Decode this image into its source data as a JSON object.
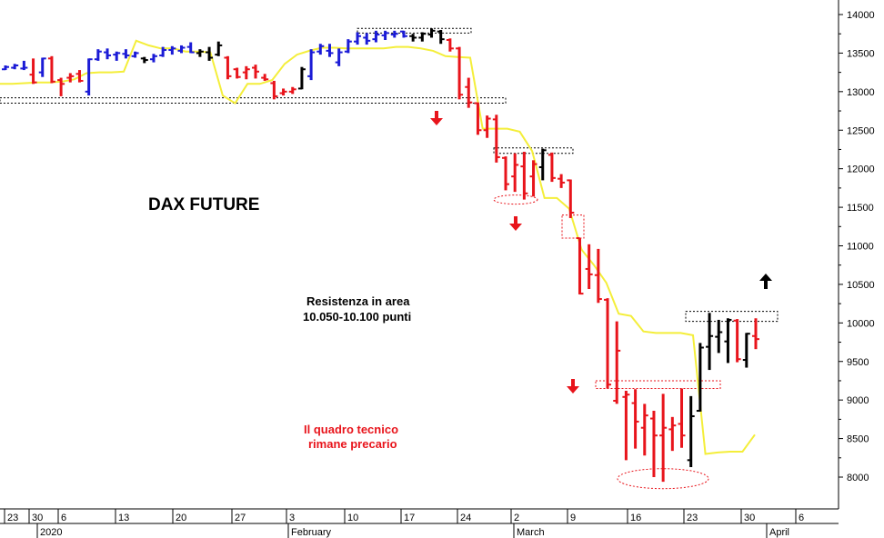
{
  "chart_data": {
    "type": "ohlc-bar",
    "title": "DAX FUTURE",
    "annotations": [
      {
        "lines": [
          "Resistenza in area",
          "10.050-10.100 punti"
        ],
        "color": "#000000"
      },
      {
        "lines": [
          "Il quadro tecnico",
          "rimane precario"
        ],
        "color": "#e8141b"
      }
    ],
    "y_ticks": [
      "14000",
      "13500",
      "13000",
      "12500",
      "12000",
      "11500",
      "11000",
      "10500",
      "10000",
      "9500",
      "9000",
      "8500",
      "8000"
    ],
    "y_tick_values": [
      14000,
      13500,
      13000,
      12500,
      12000,
      11500,
      11000,
      10500,
      10000,
      9500,
      9000,
      8500,
      8000
    ],
    "ylim": [
      7750,
      14150
    ],
    "x_day_ticks": [
      "23",
      "30",
      "6",
      "13",
      "20",
      "27",
      "3",
      "10",
      "17",
      "24",
      "2",
      "9",
      "16",
      "23",
      "30",
      "6"
    ],
    "x_month_labels": [
      "2020",
      "February",
      "March",
      "April"
    ],
    "colors": {
      "up_trend": "#1b1bd6",
      "down_trend": "#e8141b",
      "neutral": "#000000",
      "stop_line": "#f4ee3a"
    },
    "bars": [
      {
        "o": 13290,
        "h": 13340,
        "l": 13280,
        "c": 13320,
        "color": "blue"
      },
      {
        "o": 13310,
        "h": 13360,
        "l": 13290,
        "c": 13340,
        "color": "blue"
      },
      {
        "o": 13300,
        "h": 13400,
        "l": 13280,
        "c": 13310,
        "color": "blue"
      },
      {
        "o": 13220,
        "h": 13430,
        "l": 13100,
        "c": 13120,
        "color": "red"
      },
      {
        "o": 13250,
        "h": 13440,
        "l": 13190,
        "c": 13430,
        "color": "blue"
      },
      {
        "o": 13430,
        "h": 13460,
        "l": 13110,
        "c": 13130,
        "color": "red"
      },
      {
        "o": 13150,
        "h": 13180,
        "l": 12940,
        "c": 13100,
        "color": "red"
      },
      {
        "o": 13180,
        "h": 13240,
        "l": 13120,
        "c": 13200,
        "color": "red"
      },
      {
        "o": 13230,
        "h": 13280,
        "l": 13120,
        "c": 13140,
        "color": "red"
      },
      {
        "o": 13000,
        "h": 13430,
        "l": 12950,
        "c": 13420,
        "color": "blue"
      },
      {
        "o": 13420,
        "h": 13550,
        "l": 13400,
        "c": 13520,
        "color": "blue"
      },
      {
        "o": 13510,
        "h": 13560,
        "l": 13420,
        "c": 13470,
        "color": "blue"
      },
      {
        "o": 13480,
        "h": 13520,
        "l": 13400,
        "c": 13500,
        "color": "blue"
      },
      {
        "o": 13490,
        "h": 13550,
        "l": 13430,
        "c": 13470,
        "color": "blue"
      },
      {
        "o": 13460,
        "h": 13520,
        "l": 13440,
        "c": 13500,
        "color": "blue"
      },
      {
        "o": 13430,
        "h": 13450,
        "l": 13370,
        "c": 13410,
        "color": "neutral"
      },
      {
        "o": 13420,
        "h": 13490,
        "l": 13380,
        "c": 13460,
        "color": "blue"
      },
      {
        "o": 13470,
        "h": 13580,
        "l": 13450,
        "c": 13540,
        "color": "blue"
      },
      {
        "o": 13540,
        "h": 13590,
        "l": 13480,
        "c": 13560,
        "color": "blue"
      },
      {
        "o": 13530,
        "h": 13600,
        "l": 13500,
        "c": 13570,
        "color": "blue"
      },
      {
        "o": 13580,
        "h": 13640,
        "l": 13500,
        "c": 13510,
        "color": "blue"
      },
      {
        "o": 13500,
        "h": 13550,
        "l": 13450,
        "c": 13520,
        "color": "neutral"
      },
      {
        "o": 13510,
        "h": 13580,
        "l": 13400,
        "c": 13440,
        "color": "neutral"
      },
      {
        "o": 13480,
        "h": 13650,
        "l": 13460,
        "c": 13600,
        "color": "neutral"
      },
      {
        "o": 13440,
        "h": 13460,
        "l": 13160,
        "c": 13200,
        "color": "red"
      },
      {
        "o": 13290,
        "h": 13310,
        "l": 13170,
        "c": 13190,
        "color": "red"
      },
      {
        "o": 13250,
        "h": 13330,
        "l": 13160,
        "c": 13290,
        "color": "red"
      },
      {
        "o": 13310,
        "h": 13350,
        "l": 13170,
        "c": 13260,
        "color": "red"
      },
      {
        "o": 13180,
        "h": 13230,
        "l": 13140,
        "c": 13160,
        "color": "red"
      },
      {
        "o": 13110,
        "h": 13140,
        "l": 12900,
        "c": 12940,
        "color": "red"
      },
      {
        "o": 12980,
        "h": 13040,
        "l": 12950,
        "c": 13000,
        "color": "red"
      },
      {
        "o": 13000,
        "h": 13060,
        "l": 12970,
        "c": 13030,
        "color": "red"
      },
      {
        "o": 13040,
        "h": 13320,
        "l": 13030,
        "c": 13290,
        "color": "neutral"
      },
      {
        "o": 13200,
        "h": 13550,
        "l": 13150,
        "c": 13510,
        "color": "blue"
      },
      {
        "o": 13520,
        "h": 13620,
        "l": 13480,
        "c": 13590,
        "color": "blue"
      },
      {
        "o": 13530,
        "h": 13620,
        "l": 13450,
        "c": 13500,
        "color": "blue"
      },
      {
        "o": 13380,
        "h": 13560,
        "l": 13330,
        "c": 13510,
        "color": "blue"
      },
      {
        "o": 13520,
        "h": 13680,
        "l": 13500,
        "c": 13650,
        "color": "blue"
      },
      {
        "o": 13650,
        "h": 13770,
        "l": 13610,
        "c": 13720,
        "color": "blue"
      },
      {
        "o": 13700,
        "h": 13760,
        "l": 13610,
        "c": 13660,
        "color": "blue"
      },
      {
        "o": 13680,
        "h": 13790,
        "l": 13640,
        "c": 13740,
        "color": "blue"
      },
      {
        "o": 13730,
        "h": 13790,
        "l": 13670,
        "c": 13760,
        "color": "blue"
      },
      {
        "o": 13740,
        "h": 13790,
        "l": 13700,
        "c": 13750,
        "color": "blue"
      },
      {
        "o": 13780,
        "h": 13790,
        "l": 13700,
        "c": 13720,
        "color": "blue"
      },
      {
        "o": 13720,
        "h": 13750,
        "l": 13650,
        "c": 13700,
        "color": "neutral"
      },
      {
        "o": 13700,
        "h": 13770,
        "l": 13650,
        "c": 13750,
        "color": "neutral"
      },
      {
        "o": 13740,
        "h": 13820,
        "l": 13700,
        "c": 13790,
        "color": "neutral"
      },
      {
        "o": 13780,
        "h": 13800,
        "l": 13620,
        "c": 13680,
        "color": "neutral"
      },
      {
        "o": 13670,
        "h": 13690,
        "l": 13520,
        "c": 13560,
        "color": "red"
      },
      {
        "o": 13560,
        "h": 13580,
        "l": 12900,
        "c": 12960,
        "color": "red"
      },
      {
        "o": 13060,
        "h": 13180,
        "l": 12790,
        "c": 12860,
        "color": "red"
      },
      {
        "o": 12850,
        "h": 12860,
        "l": 12440,
        "c": 12500,
        "color": "red"
      },
      {
        "o": 12500,
        "h": 12690,
        "l": 12400,
        "c": 12650,
        "color": "red"
      },
      {
        "o": 12640,
        "h": 12700,
        "l": 12080,
        "c": 12150,
        "color": "red"
      },
      {
        "o": 12140,
        "h": 12160,
        "l": 11720,
        "c": 11800,
        "color": "red"
      },
      {
        "o": 11900,
        "h": 12200,
        "l": 11700,
        "c": 12050,
        "color": "red"
      },
      {
        "o": 12030,
        "h": 12220,
        "l": 11600,
        "c": 11680,
        "color": "red"
      },
      {
        "o": 11900,
        "h": 12110,
        "l": 11640,
        "c": 12060,
        "color": "red"
      },
      {
        "o": 12020,
        "h": 12260,
        "l": 11850,
        "c": 12240,
        "color": "neutral"
      },
      {
        "o": 12180,
        "h": 12210,
        "l": 11830,
        "c": 11880,
        "color": "red"
      },
      {
        "o": 11870,
        "h": 11930,
        "l": 11750,
        "c": 11820,
        "color": "red"
      },
      {
        "o": 11850,
        "h": 11860,
        "l": 11360,
        "c": 11430,
        "color": "red"
      },
      {
        "o": 11100,
        "h": 11100,
        "l": 10370,
        "c": 10380,
        "color": "red"
      },
      {
        "o": 10700,
        "h": 11020,
        "l": 10440,
        "c": 10630,
        "color": "red"
      },
      {
        "o": 10620,
        "h": 10960,
        "l": 10260,
        "c": 10310,
        "color": "red"
      },
      {
        "o": 10300,
        "h": 10320,
        "l": 9150,
        "c": 9200,
        "color": "red"
      },
      {
        "o": 8990,
        "h": 10020,
        "l": 8950,
        "c": 9640,
        "color": "red"
      },
      {
        "o": 9040,
        "h": 9120,
        "l": 8220,
        "c": 9070,
        "color": "red"
      },
      {
        "o": 8960,
        "h": 9140,
        "l": 8370,
        "c": 8720,
        "color": "red"
      },
      {
        "o": 8640,
        "h": 8950,
        "l": 8280,
        "c": 8800,
        "color": "red"
      },
      {
        "o": 8760,
        "h": 8860,
        "l": 8000,
        "c": 8540,
        "color": "red"
      },
      {
        "o": 8540,
        "h": 9080,
        "l": 7940,
        "c": 8640,
        "color": "red"
      },
      {
        "o": 8620,
        "h": 8780,
        "l": 8340,
        "c": 8670,
        "color": "red"
      },
      {
        "o": 8690,
        "h": 9150,
        "l": 8380,
        "c": 8540,
        "color": "red"
      },
      {
        "o": 8220,
        "h": 9050,
        "l": 8130,
        "c": 8790,
        "color": "neutral"
      },
      {
        "o": 8860,
        "h": 9740,
        "l": 8850,
        "c": 9680,
        "color": "neutral"
      },
      {
        "o": 9690,
        "h": 10130,
        "l": 9390,
        "c": 9830,
        "color": "neutral"
      },
      {
        "o": 9820,
        "h": 10040,
        "l": 9610,
        "c": 9880,
        "color": "neutral"
      },
      {
        "o": 9760,
        "h": 10060,
        "l": 9480,
        "c": 10040,
        "color": "neutral"
      },
      {
        "o": 10030,
        "h": 10050,
        "l": 9490,
        "c": 9530,
        "color": "red"
      },
      {
        "o": 9520,
        "h": 9870,
        "l": 9420,
        "c": 9860,
        "color": "neutral"
      },
      {
        "o": 9830,
        "h": 10060,
        "l": 9660,
        "c": 9790,
        "color": "red"
      }
    ],
    "stop_line": [
      13100,
      13100,
      13110,
      13120,
      13120,
      13130,
      13160,
      13240,
      13250,
      13250,
      13260,
      13660,
      13600,
      13560,
      13560,
      13520,
      13520,
      13510,
      12950,
      12850,
      13100,
      13100,
      13150,
      13360,
      13480,
      13530,
      13570,
      13570,
      13560,
      13560,
      13560,
      13560,
      13580,
      13580,
      13560,
      13530,
      13460,
      13450,
      13440,
      12520,
      12520,
      12520,
      12480,
      12230,
      11620,
      11620,
      11480,
      10950,
      10750,
      10520,
      10120,
      10090,
      9890,
      9870,
      9870,
      9870,
      9840,
      8300,
      8320,
      8330,
      8330,
      8550
    ],
    "stop_line_x_start": 0,
    "resistance_zones": [
      {
        "label": "",
        "values": [
          13760,
          13820
        ]
      },
      {
        "label": "",
        "values": [
          12850,
          12920
        ]
      },
      {
        "label": "",
        "values": [
          12200,
          12270
        ]
      },
      {
        "label": "",
        "values": [
          9150,
          9250
        ]
      },
      {
        "label": "",
        "values": [
          10020,
          10150
        ]
      }
    ]
  }
}
